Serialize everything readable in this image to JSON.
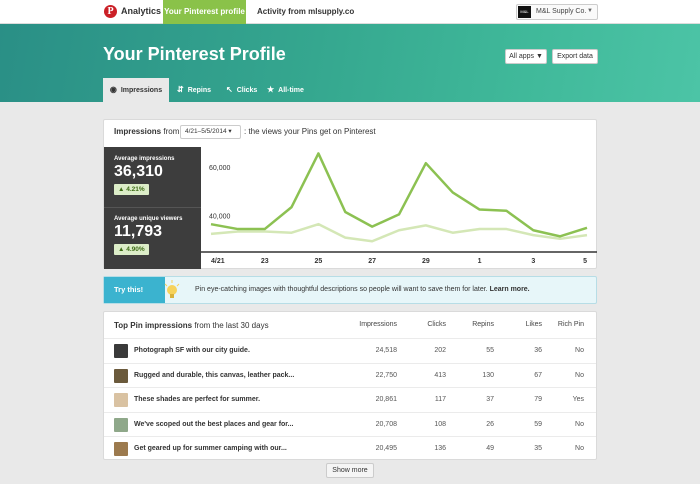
{
  "topnav": {
    "brand": "Analytics",
    "tabs": [
      "Your Pinterest profile",
      "Activity from mlsupply.co"
    ],
    "account_name": "M&L Supply Co."
  },
  "hero": {
    "title": "Your Pinterest Profile",
    "all_apps_label": "All apps ▼",
    "export_label": "Export data"
  },
  "subtabs": [
    {
      "label": "Impressions",
      "icon": "eye-icon"
    },
    {
      "label": "Repins",
      "icon": "repin-icon"
    },
    {
      "label": "Clicks",
      "icon": "cursor-icon"
    },
    {
      "label": "All-time",
      "icon": "star-icon"
    }
  ],
  "impressions": {
    "heading": "Impressions",
    "from_label": "from",
    "date_range": "4/21–5/5/2014",
    "description": ": the views your Pins get on Pinterest",
    "stats": [
      {
        "label": "Average impressions",
        "value": "36,310",
        "change": "4.21%"
      },
      {
        "label": "Average unique viewers",
        "value": "11,793",
        "change": "4.90%"
      }
    ]
  },
  "chart_data": {
    "type": "line",
    "x": [
      "4/21",
      "22",
      "23",
      "24",
      "25",
      "26",
      "27",
      "28",
      "29",
      "30",
      "1",
      "2",
      "3",
      "4",
      "5"
    ],
    "xtick_labels": [
      "4/21",
      "23",
      "25",
      "27",
      "29",
      "1",
      "3",
      "5"
    ],
    "ytick_labels": [
      "60,000",
      "40,000"
    ],
    "yticks": [
      60000,
      40000
    ],
    "ylim": [
      28000,
      69000
    ],
    "series": [
      {
        "values": [
          39000,
          37000,
          37000,
          46000,
          68000,
          44000,
          38000,
          43000,
          64000,
          52000,
          45000,
          44500,
          36500,
          34000,
          37500
        ],
        "color": "#8cc152"
      },
      {
        "values": [
          35000,
          36000,
          36000,
          35500,
          39000,
          33500,
          32000,
          36500,
          38500,
          35500,
          37000,
          37000,
          34500,
          33000,
          34500
        ],
        "color": "#d4e7b6"
      }
    ],
    "grid": false
  },
  "try_this": {
    "tag": "Try this!",
    "text": "Pin eye-catching images with thoughtful descriptions so people will want to save them for later.",
    "link": "Learn more."
  },
  "top_pins": {
    "title_bold": "Top Pin impressions",
    "title_rest": " from the last 30 days",
    "columns": [
      "Impressions",
      "Clicks",
      "Repins",
      "Likes",
      "Rich Pin"
    ],
    "rows": [
      {
        "title": "Photograph SF with our city guide.",
        "impressions": "24,518",
        "clicks": "202",
        "repins": "55",
        "likes": "36",
        "rich": "No",
        "thumb_color": "#3a3a3a"
      },
      {
        "title": "Rugged and durable, this canvas, leather pack...",
        "impressions": "22,750",
        "clicks": "413",
        "repins": "130",
        "likes": "67",
        "rich": "No",
        "thumb_color": "#6b5a3c"
      },
      {
        "title": "These shades are perfect for summer.",
        "impressions": "20,861",
        "clicks": "117",
        "repins": "37",
        "likes": "79",
        "rich": "Yes",
        "thumb_color": "#d9c2a2"
      },
      {
        "title": "We've scoped out the best places and gear for...",
        "impressions": "20,708",
        "clicks": "108",
        "repins": "26",
        "likes": "59",
        "rich": "No",
        "thumb_color": "#8fa88a"
      },
      {
        "title": "Get geared up for summer camping with our...",
        "impressions": "20,495",
        "clicks": "136",
        "repins": "49",
        "likes": "35",
        "rich": "No",
        "thumb_color": "#9c7a4e"
      }
    ],
    "show_more": "Show more"
  }
}
